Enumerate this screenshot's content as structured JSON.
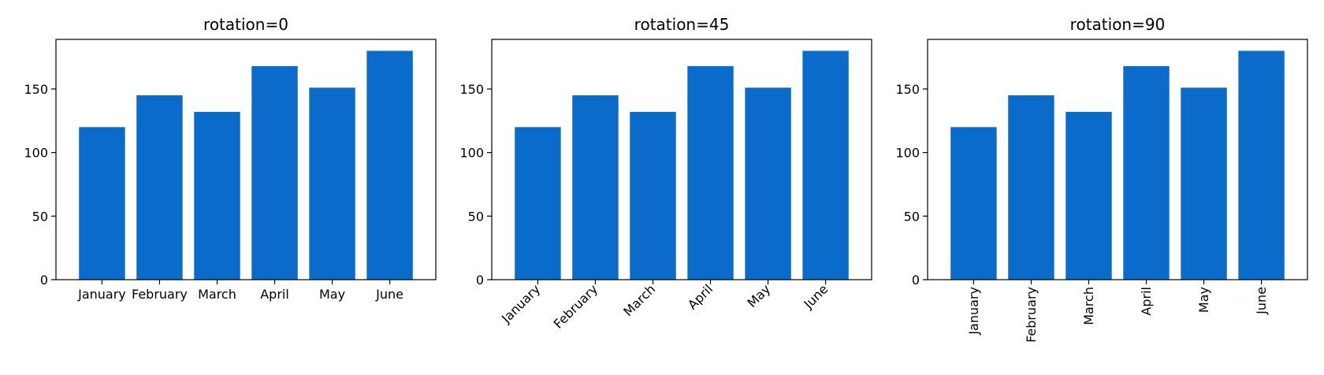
{
  "chart_data": [
    {
      "type": "bar",
      "title": "rotation=0",
      "categories": [
        "January",
        "February",
        "March",
        "April",
        "May",
        "June"
      ],
      "values": [
        120,
        145,
        132,
        168,
        151,
        180
      ],
      "xlabel": "",
      "ylabel": "",
      "ylim": [
        0,
        189
      ],
      "yticks": [
        0,
        50,
        100,
        150
      ],
      "tick_rotation": 0,
      "bar_color": "#0b6bcb",
      "grid": false
    },
    {
      "type": "bar",
      "title": "rotation=45",
      "categories": [
        "January",
        "February",
        "March",
        "April",
        "May",
        "June"
      ],
      "values": [
        120,
        145,
        132,
        168,
        151,
        180
      ],
      "xlabel": "",
      "ylabel": "",
      "ylim": [
        0,
        189
      ],
      "yticks": [
        0,
        50,
        100,
        150
      ],
      "tick_rotation": 45,
      "bar_color": "#0b6bcb",
      "grid": false
    },
    {
      "type": "bar",
      "title": "rotation=90",
      "categories": [
        "January",
        "February",
        "March",
        "April",
        "May",
        "June"
      ],
      "values": [
        120,
        145,
        132,
        168,
        151,
        180
      ],
      "xlabel": "",
      "ylabel": "",
      "ylim": [
        0,
        189
      ],
      "yticks": [
        0,
        50,
        100,
        150
      ],
      "tick_rotation": 90,
      "bar_color": "#0b6bcb",
      "grid": false
    }
  ]
}
